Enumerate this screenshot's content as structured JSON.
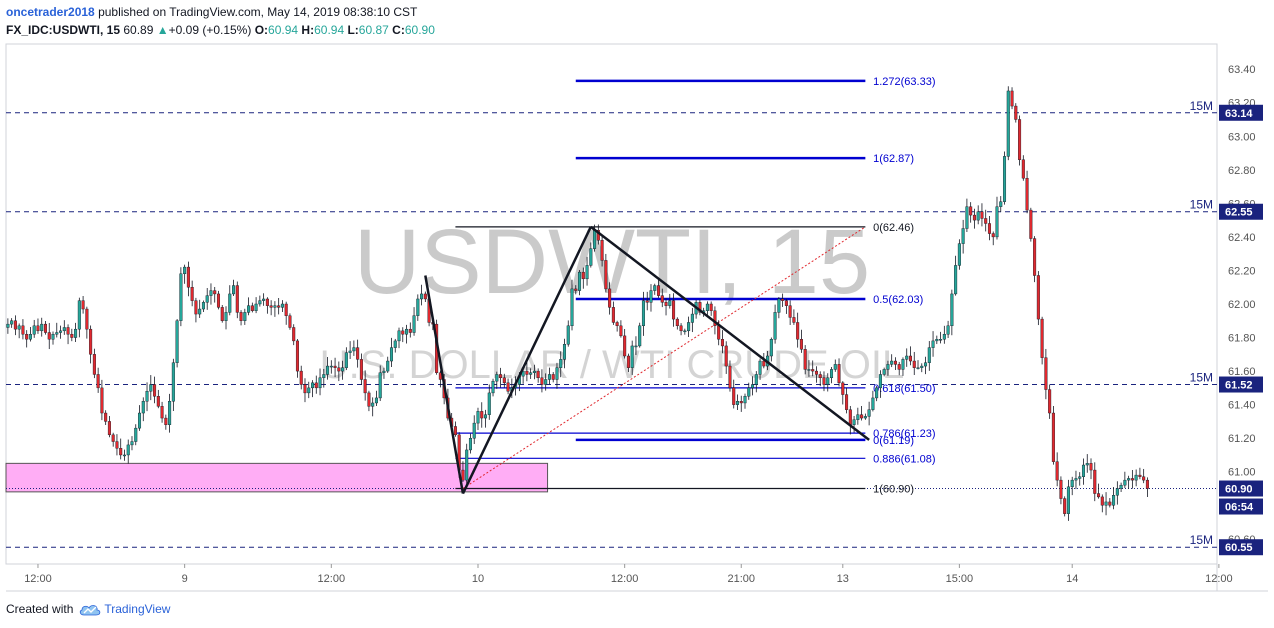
{
  "header": {
    "author": "oncetrader2018",
    "published_text": "published on TradingView.com, May 14, 2019 08:38:10 CST",
    "symbol": "FX_IDC:USDWTI, 15",
    "last": "60.89",
    "change": "+0.09 (+0.15%)",
    "open_label": "O:",
    "open": "60.94",
    "high_label": "H:",
    "high": "60.94",
    "low_label": "L:",
    "low": "60.87",
    "close_label": "C:",
    "close": "60.90"
  },
  "footer": {
    "created_with": "Created with",
    "brand": "TradingView",
    "logo_icon": "tradingview-cloud-icon"
  },
  "colors": {
    "up": "#26a69a",
    "down": "#e0292f",
    "wick": "#131722",
    "fib": "#0000d0",
    "level": "#1a237e",
    "zone": "#ff9ff3",
    "watermark": "#b8b8b8",
    "price_tag": "#1a237e"
  },
  "chart_data": {
    "type": "candlestick",
    "watermark_title": "USDWTI, 15",
    "watermark_subtitle": "U.S. DOLLAR / WTI CRUDE OIL",
    "ylim": [
      60.45,
      63.55
    ],
    "y_ticks": [
      "63.40",
      "63.20",
      "63.00",
      "62.80",
      "62.60",
      "62.40",
      "62.20",
      "62.00",
      "61.80",
      "61.60",
      "61.40",
      "61.20",
      "61.00",
      "60.80",
      "60.60"
    ],
    "x_ticks": [
      {
        "label": "12:00",
        "bar": 8
      },
      {
        "label": "9",
        "bar": 47
      },
      {
        "label": "12:00",
        "bar": 86
      },
      {
        "label": "10",
        "bar": 125
      },
      {
        "label": "12:00",
        "bar": 164
      },
      {
        "label": "21:00",
        "bar": 195
      },
      {
        "label": "13",
        "bar": 222
      },
      {
        "label": "15:00",
        "bar": 253
      },
      {
        "label": "14",
        "bar": 283
      },
      {
        "label": "12:00",
        "bar": 322
      }
    ],
    "horizontal_levels": [
      {
        "label": "15M",
        "value": 63.14
      },
      {
        "label": "15M",
        "value": 62.55
      },
      {
        "label": "15M",
        "value": 61.52
      },
      {
        "label": "15M",
        "value": 60.55
      }
    ],
    "price_tags": [
      "63.14",
      "62.55",
      "61.52",
      "60.90",
      "06:54",
      "60.55"
    ],
    "current_price": 60.9,
    "countdown": "06:54",
    "fib_levels": [
      {
        "label": "1.272(63.33)",
        "value": 63.33
      },
      {
        "label": "1(62.87)",
        "value": 62.87
      },
      {
        "label": "0(62.46)",
        "value": 62.46
      },
      {
        "label": "0.5(62.03)",
        "value": 62.03
      },
      {
        "label": "0.618(61.50)",
        "value": 61.5
      },
      {
        "label": "0.786(61.23)",
        "value": 61.23
      },
      {
        "label": "0(61.19)",
        "value": 61.19
      },
      {
        "label": "0.886(61.08)",
        "value": 61.08
      },
      {
        "label": "1(60.90)",
        "value": 60.9
      }
    ],
    "zone": {
      "from_bar": 0,
      "to_bar": 144,
      "low": 60.88,
      "high": 61.05
    },
    "pattern_points": [
      {
        "bar": 111,
        "value": 62.17
      },
      {
        "bar": 121,
        "value": 60.87
      },
      {
        "bar": 155,
        "value": 62.46
      },
      {
        "bar": 229,
        "value": 61.19
      }
    ],
    "closes": [
      61.88,
      61.9,
      61.85,
      61.87,
      61.82,
      61.79,
      61.82,
      61.87,
      61.84,
      61.88,
      61.83,
      61.79,
      61.82,
      61.83,
      61.84,
      61.86,
      61.82,
      61.8,
      61.85,
      62.02,
      61.97,
      61.85,
      61.7,
      61.58,
      61.5,
      61.35,
      61.3,
      61.22,
      61.18,
      61.14,
      61.1,
      61.1,
      61.16,
      61.18,
      61.26,
      61.35,
      61.42,
      61.48,
      61.52,
      61.45,
      61.39,
      61.32,
      61.28,
      61.42,
      61.65,
      61.9,
      62.18,
      62.22,
      62.1,
      62.02,
      61.94,
      61.97,
      62.01,
      62.05,
      62.08,
      62.06,
      61.98,
      61.9,
      61.95,
      62.06,
      62.11,
      61.95,
      61.9,
      61.95,
      61.99,
      61.96,
      62.0,
      62.02,
      62.03,
      61.99,
      61.98,
      61.99,
      61.98,
      62.0,
      61.93,
      61.86,
      61.78,
      61.6,
      61.52,
      61.47,
      61.5,
      61.53,
      61.5,
      61.56,
      61.58,
      61.63,
      61.63,
      61.62,
      61.6,
      61.62,
      61.71,
      61.72,
      61.74,
      61.67,
      61.55,
      61.47,
      61.39,
      61.41,
      61.44,
      61.59,
      61.6,
      61.66,
      61.74,
      61.78,
      61.84,
      61.82,
      61.85,
      61.83,
      61.93,
      62.03,
      62.06,
      62.03,
      61.89,
      61.88,
      61.59,
      61.55,
      61.44,
      61.32,
      61.27,
      61.22,
      61.01,
      60.95,
      61.13,
      61.2,
      61.29,
      61.36,
      61.32,
      61.34,
      61.47,
      61.54,
      61.58,
      61.56,
      61.53,
      61.48,
      61.5,
      61.52,
      61.57,
      61.6,
      61.58,
      61.59,
      61.6,
      61.56,
      61.52,
      61.55,
      61.58,
      61.55,
      61.62,
      61.67,
      61.76,
      61.87,
      62.09,
      62.08,
      62.19,
      62.15,
      62.23,
      62.33,
      62.44,
      62.38,
      62.26,
      62.09,
      61.98,
      61.89,
      61.87,
      61.81,
      61.69,
      61.62,
      61.75,
      61.75,
      61.87,
      62.02,
      62.01,
      62.08,
      62.11,
      62.05,
      62.01,
      61.99,
      62.02,
      61.91,
      61.87,
      61.84,
      61.84,
      61.89,
      61.94,
      62.01,
      61.95,
      61.96,
      62.0,
      61.96,
      61.87,
      61.79,
      61.75,
      61.63,
      61.5,
      61.4,
      61.42,
      61.41,
      61.45,
      61.5,
      61.52,
      61.58,
      61.66,
      61.63,
      61.69,
      61.79,
      61.95,
      62.03,
      62.02,
      61.99,
      61.92,
      61.89,
      61.79,
      61.73,
      61.61,
      61.61,
      61.6,
      61.58,
      61.56,
      61.52,
      61.56,
      61.61,
      61.64,
      61.53,
      61.46,
      61.37,
      61.28,
      61.31,
      61.34,
      61.32,
      61.33,
      61.37,
      61.44,
      61.5,
      61.58,
      61.61,
      61.64,
      61.66,
      61.64,
      61.61,
      61.67,
      61.69,
      61.66,
      61.62,
      61.62,
      61.63,
      61.65,
      61.74,
      61.78,
      61.79,
      61.79,
      61.82,
      61.87,
      62.06,
      62.23,
      62.36,
      62.45,
      62.58,
      62.53,
      62.5,
      62.55,
      62.51,
      62.48,
      62.42,
      62.4,
      62.58,
      62.61,
      62.88,
      63.27,
      63.18,
      63.1,
      62.86,
      62.75,
      62.56,
      62.39,
      62.17,
      61.91,
      61.68,
      61.49,
      61.35,
      61.06,
      60.95,
      60.84,
      60.75,
      60.91,
      60.95,
      60.96,
      60.97,
      61.04,
      61.05,
      61.01,
      60.87,
      60.85,
      60.8,
      60.82,
      60.8,
      60.86,
      60.9,
      60.92,
      60.95,
      60.96,
      60.95,
      60.98,
      60.97,
      60.95,
      60.9
    ],
    "bar_count": 322,
    "bars_ending": 314
  }
}
